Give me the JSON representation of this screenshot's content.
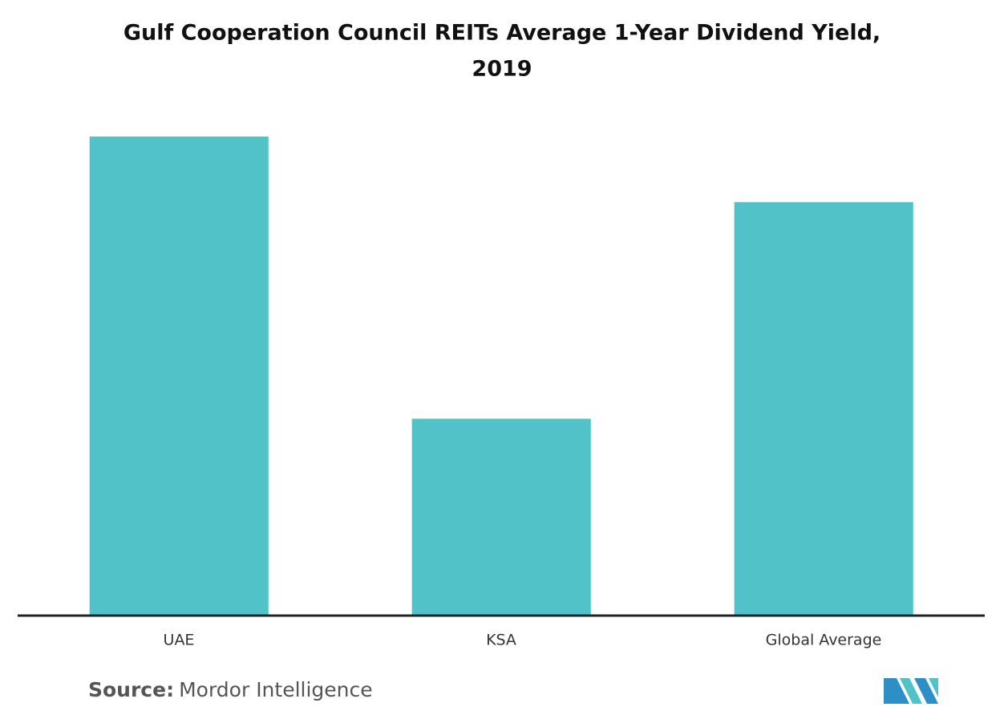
{
  "chart_data": {
    "type": "bar",
    "title": [
      "Gulf Cooperation Council REITs Average 1-Year Dividend Yield,",
      "2019"
    ],
    "categories": [
      "UAE",
      "KSA",
      "Global Average"
    ],
    "values": [
      7.3,
      3.0,
      6.3
    ],
    "color": "#51c3c8",
    "ylim": [
      0,
      8
    ],
    "source_label": "Source:",
    "source": "Mordor Intelligence"
  }
}
